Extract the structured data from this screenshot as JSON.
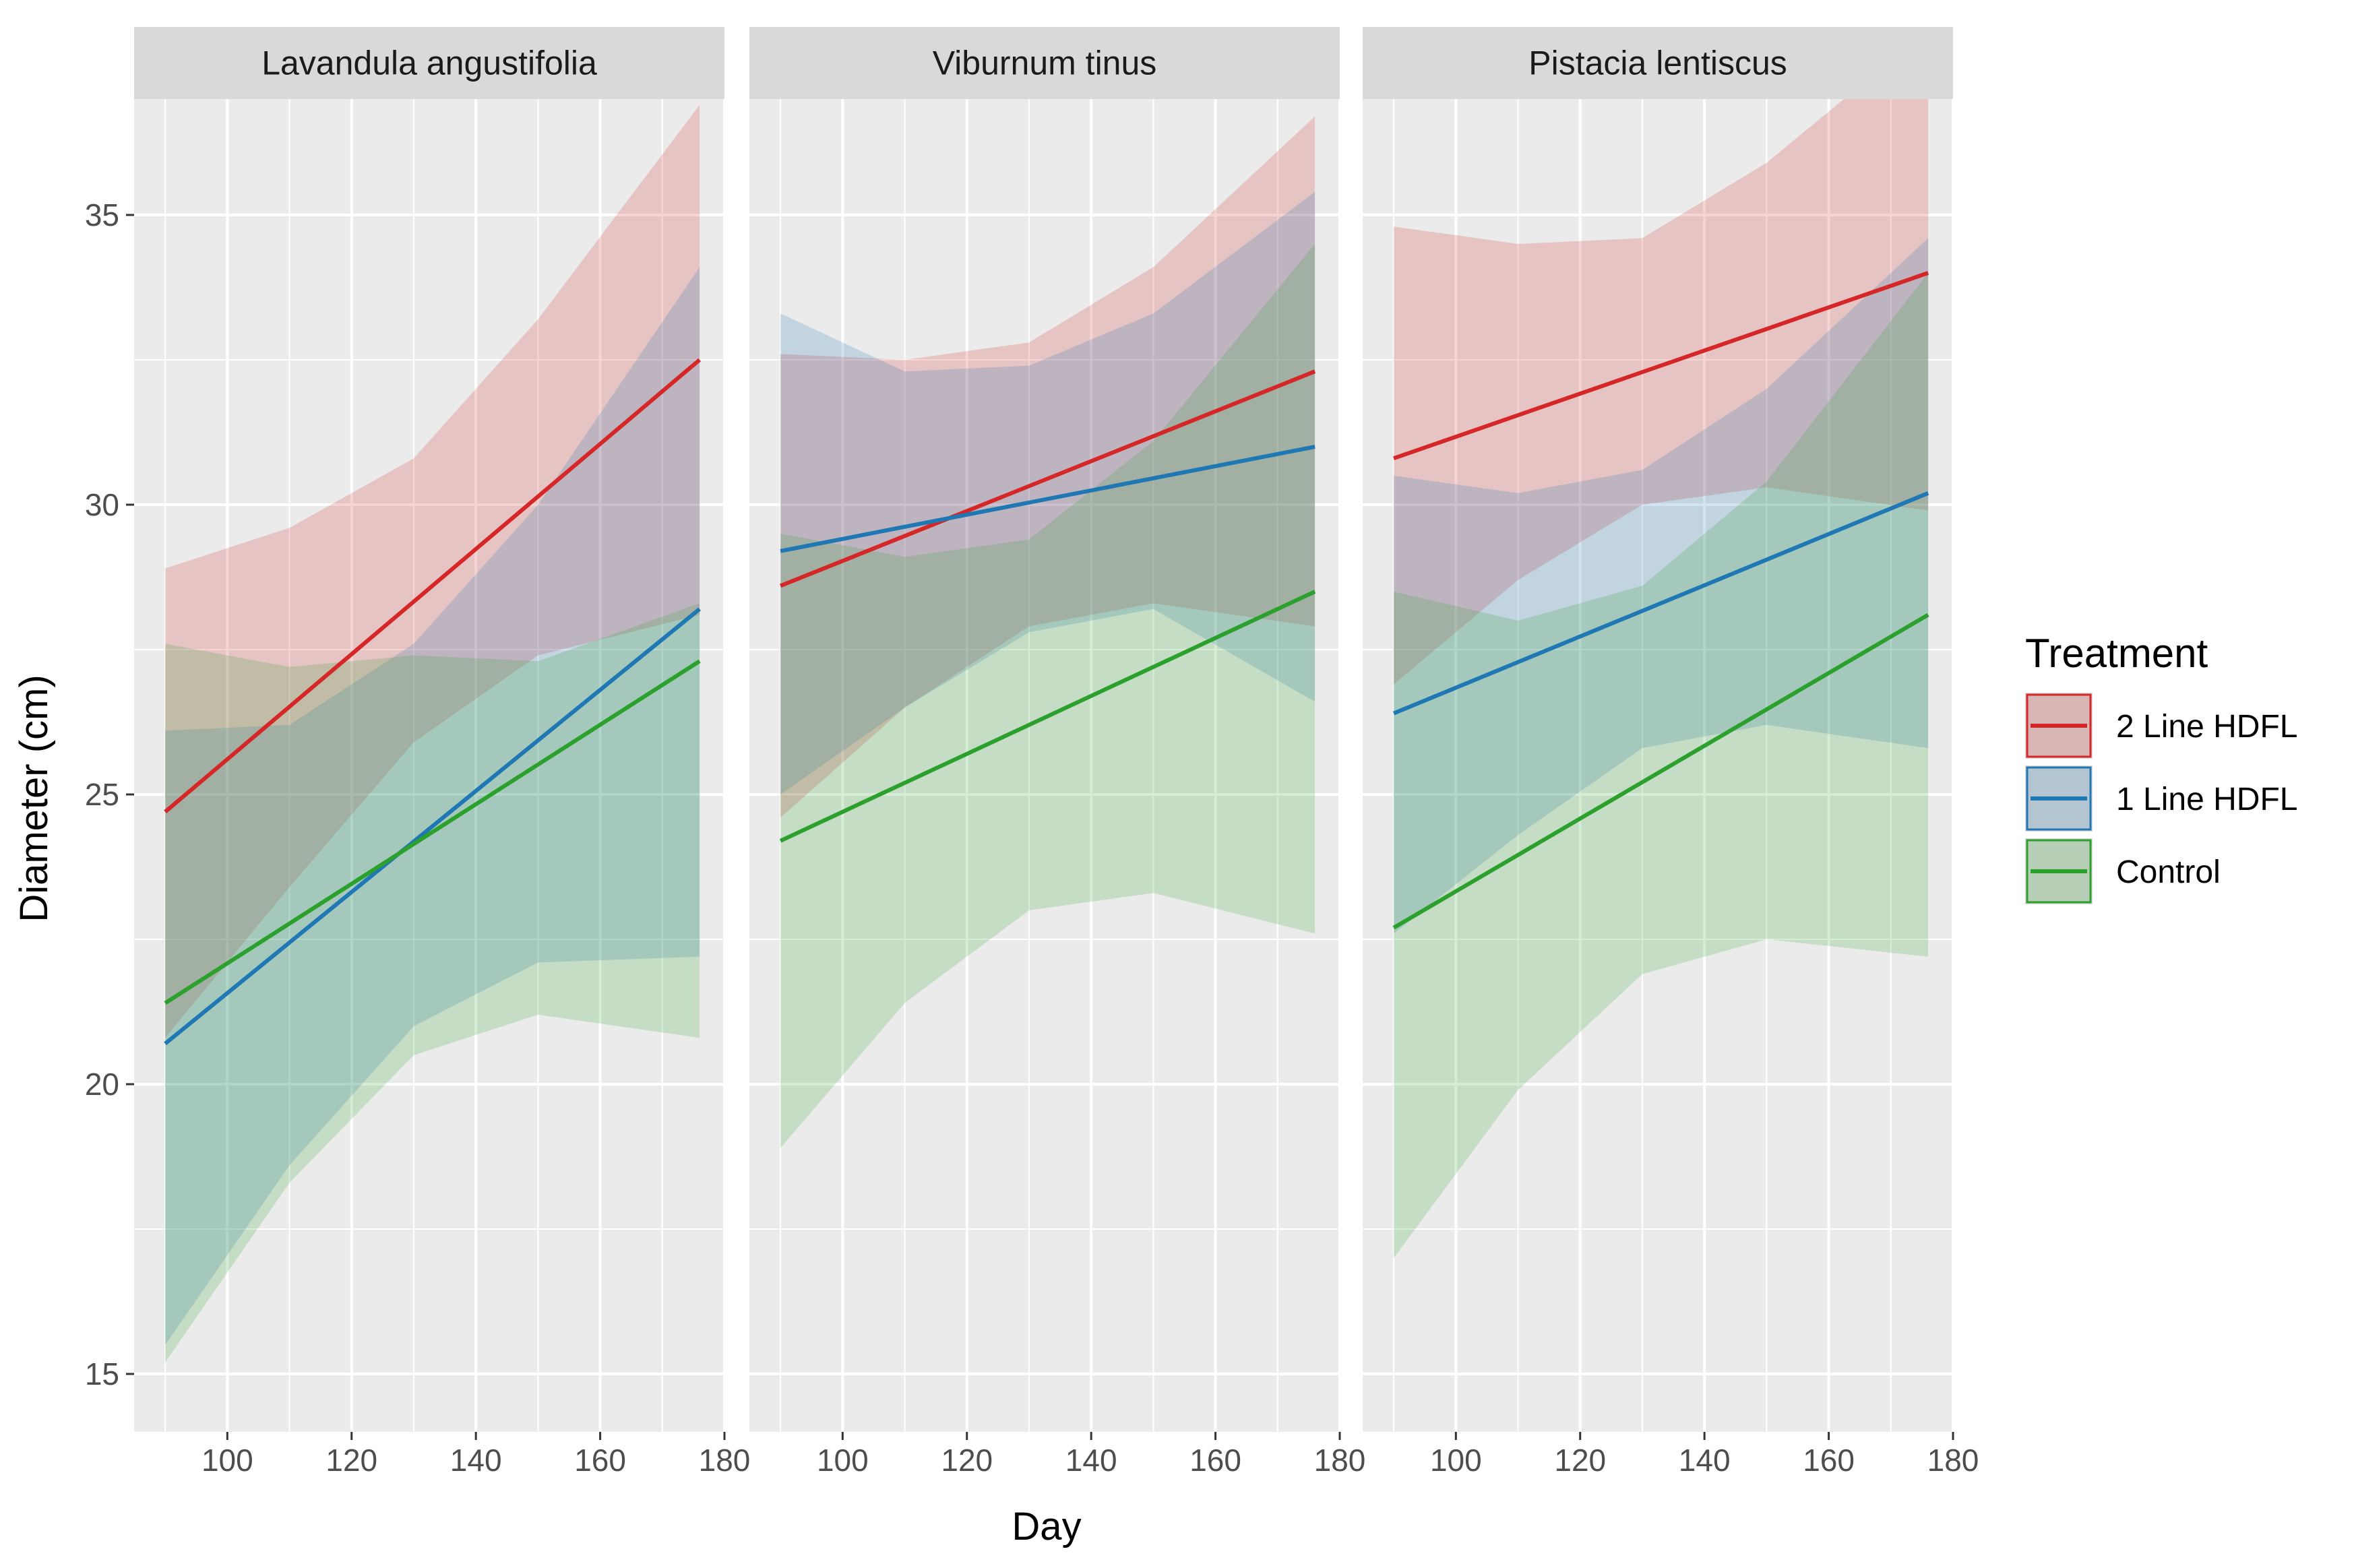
{
  "chart_data": {
    "type": "line",
    "xlabel": "Day",
    "ylabel": "Diameter (cm)",
    "xlim": [
      85,
      180
    ],
    "ylim": [
      14,
      37
    ],
    "x_ticks": [
      100,
      120,
      140,
      160,
      180
    ],
    "y_ticks": [
      15,
      20,
      25,
      30,
      35
    ],
    "grid": true,
    "legend": {
      "title": "Treatment",
      "position": "right",
      "entries": [
        "2 Line HDFL",
        "1 Line HDFL",
        "Control"
      ]
    },
    "colors": {
      "2 Line HDFL": "#d62728",
      "1 Line HDFL": "#1f77b4",
      "Control": "#2ca02c"
    },
    "panels": [
      {
        "title": "Lavandula angustifolia",
        "series": [
          {
            "name": "2 Line HDFL",
            "line": [
              [
                90,
                24.7
              ],
              [
                176,
                32.5
              ]
            ],
            "ribbon": [
              [
                90,
                20.8,
                28.9
              ],
              [
                110,
                23.4,
                29.6
              ],
              [
                130,
                25.9,
                30.8
              ],
              [
                150,
                27.4,
                33.2
              ],
              [
                176,
                28.1,
                36.9
              ]
            ]
          },
          {
            "name": "1 Line HDFL",
            "line": [
              [
                90,
                20.7
              ],
              [
                176,
                28.2
              ]
            ],
            "ribbon": [
              [
                90,
                15.5,
                26.1
              ],
              [
                110,
                18.6,
                26.2
              ],
              [
                130,
                21.0,
                27.6
              ],
              [
                150,
                22.1,
                30.0
              ],
              [
                176,
                22.2,
                34.1
              ]
            ]
          },
          {
            "name": "Control",
            "line": [
              [
                90,
                21.4
              ],
              [
                176,
                27.3
              ]
            ],
            "ribbon": [
              [
                90,
                15.2,
                27.6
              ],
              [
                110,
                18.3,
                27.2
              ],
              [
                130,
                20.5,
                27.4
              ],
              [
                150,
                21.2,
                27.3
              ],
              [
                176,
                20.8,
                28.3
              ]
            ]
          }
        ]
      },
      {
        "title": "Viburnum tinus",
        "series": [
          {
            "name": "2 Line HDFL",
            "line": [
              [
                90,
                28.6
              ],
              [
                176,
                32.3
              ]
            ],
            "ribbon": [
              [
                90,
                24.6,
                32.6
              ],
              [
                110,
                26.5,
                32.5
              ],
              [
                130,
                27.9,
                32.8
              ],
              [
                150,
                28.3,
                34.1
              ],
              [
                176,
                27.9,
                36.7
              ]
            ]
          },
          {
            "name": "1 Line HDFL",
            "line": [
              [
                90,
                29.2
              ],
              [
                176,
                31.0
              ]
            ],
            "ribbon": [
              [
                90,
                25.0,
                33.3
              ],
              [
                110,
                26.5,
                32.3
              ],
              [
                130,
                27.8,
                32.4
              ],
              [
                150,
                28.2,
                33.3
              ],
              [
                176,
                26.6,
                35.4
              ]
            ]
          },
          {
            "name": "Control",
            "line": [
              [
                90,
                24.2
              ],
              [
                176,
                28.5
              ]
            ],
            "ribbon": [
              [
                90,
                18.9,
                29.5
              ],
              [
                110,
                21.4,
                29.1
              ],
              [
                130,
                23.0,
                29.4
              ],
              [
                150,
                23.3,
                31.1
              ],
              [
                176,
                22.6,
                34.5
              ]
            ]
          }
        ]
      },
      {
        "title": "Pistacia lentiscus",
        "series": [
          {
            "name": "2 Line HDFL",
            "line": [
              [
                90,
                30.8
              ],
              [
                176,
                34.0
              ]
            ],
            "ribbon": [
              [
                90,
                26.9,
                34.8
              ],
              [
                110,
                28.7,
                34.5
              ],
              [
                130,
                30.0,
                34.6
              ],
              [
                150,
                30.3,
                35.9
              ],
              [
                176,
                29.9,
                38.2
              ]
            ]
          },
          {
            "name": "1 Line HDFL",
            "line": [
              [
                90,
                26.4
              ],
              [
                176,
                30.2
              ]
            ],
            "ribbon": [
              [
                90,
                22.6,
                30.5
              ],
              [
                110,
                24.3,
                30.2
              ],
              [
                130,
                25.8,
                30.6
              ],
              [
                150,
                26.2,
                32.0
              ],
              [
                176,
                25.8,
                34.6
              ]
            ]
          },
          {
            "name": "Control",
            "line": [
              [
                90,
                22.7
              ],
              [
                176,
                28.1
              ]
            ],
            "ribbon": [
              [
                90,
                17.0,
                28.5
              ],
              [
                110,
                19.9,
                28.0
              ],
              [
                130,
                21.9,
                28.6
              ],
              [
                150,
                22.5,
                30.4
              ],
              [
                176,
                22.2,
                34.0
              ]
            ]
          }
        ]
      }
    ]
  }
}
